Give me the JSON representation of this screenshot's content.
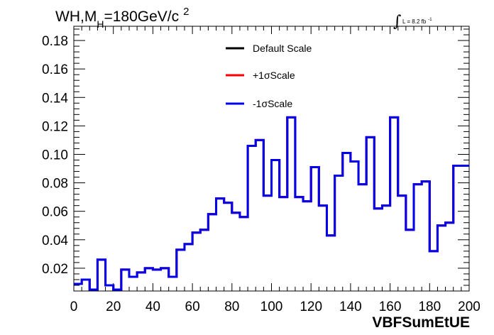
{
  "chart_data": {
    "type": "line",
    "step": true,
    "title": "WH,M",
    "title_subscript": "H",
    "title_suffix": "=180GeV/c",
    "title_superscript": "2",
    "annotation": "L = 8.2 fb",
    "annotation_superscript": "-1",
    "xlabel": "VBFSumEtUE",
    "ylabel": "",
    "xlim": [
      0,
      200
    ],
    "ylim": [
      0.004,
      0.19
    ],
    "xticks": [
      "0",
      "20",
      "40",
      "60",
      "80",
      "100",
      "120",
      "140",
      "160",
      "180",
      "200"
    ],
    "yticks": [
      "0.02",
      "0.04",
      "0.06",
      "0.08",
      "0.10",
      "0.12",
      "0.14",
      "0.16",
      "0.18"
    ],
    "legend_position": "top-center",
    "bin_edges": [
      0,
      4,
      8,
      12,
      16,
      20,
      24,
      28,
      32,
      36,
      40,
      44,
      48,
      52,
      56,
      60,
      64,
      68,
      72,
      76,
      80,
      84,
      88,
      92,
      96,
      100,
      104,
      108,
      112,
      116,
      120,
      124,
      128,
      132,
      136,
      140,
      144,
      148,
      152,
      156,
      160,
      164,
      168,
      172,
      176,
      180,
      184,
      188,
      192,
      196,
      200
    ],
    "series": [
      {
        "name": "Default Scale",
        "color": "#000000",
        "values": [
          0.009,
          0.012,
          0.005,
          0.026,
          0.008,
          0.005,
          0.019,
          0.014,
          0.017,
          0.02,
          0.019,
          0.02,
          0.014,
          0.033,
          0.037,
          0.045,
          0.047,
          0.058,
          0.069,
          0.066,
          0.059,
          0.056,
          0.106,
          0.11,
          0.071,
          0.096,
          0.07,
          0.126,
          0.07,
          0.067,
          0.091,
          0.064,
          0.043,
          0.085,
          0.101,
          0.095,
          0.079,
          0.112,
          0.062,
          0.064,
          0.126,
          0.071,
          0.047,
          0.079,
          0.081,
          0.032,
          0.05,
          0.052,
          0.092,
          0.092
        ]
      },
      {
        "name": "+1σScale",
        "color": "#ff0000",
        "values": [
          0.009,
          0.012,
          0.005,
          0.026,
          0.008,
          0.005,
          0.019,
          0.014,
          0.017,
          0.02,
          0.019,
          0.02,
          0.014,
          0.033,
          0.037,
          0.045,
          0.047,
          0.058,
          0.069,
          0.066,
          0.059,
          0.056,
          0.106,
          0.11,
          0.071,
          0.096,
          0.07,
          0.126,
          0.07,
          0.067,
          0.091,
          0.064,
          0.043,
          0.085,
          0.101,
          0.095,
          0.079,
          0.112,
          0.062,
          0.064,
          0.126,
          0.071,
          0.047,
          0.079,
          0.081,
          0.032,
          0.05,
          0.052,
          0.092,
          0.092
        ]
      },
      {
        "name": "-1σScale",
        "color": "#0000ee",
        "values": [
          0.009,
          0.012,
          0.005,
          0.026,
          0.008,
          0.005,
          0.019,
          0.014,
          0.017,
          0.02,
          0.019,
          0.02,
          0.014,
          0.033,
          0.037,
          0.045,
          0.047,
          0.058,
          0.069,
          0.066,
          0.059,
          0.056,
          0.106,
          0.11,
          0.071,
          0.096,
          0.07,
          0.126,
          0.07,
          0.067,
          0.091,
          0.064,
          0.043,
          0.085,
          0.101,
          0.095,
          0.079,
          0.112,
          0.062,
          0.064,
          0.126,
          0.071,
          0.047,
          0.079,
          0.081,
          0.032,
          0.05,
          0.052,
          0.092,
          0.092
        ]
      }
    ]
  }
}
